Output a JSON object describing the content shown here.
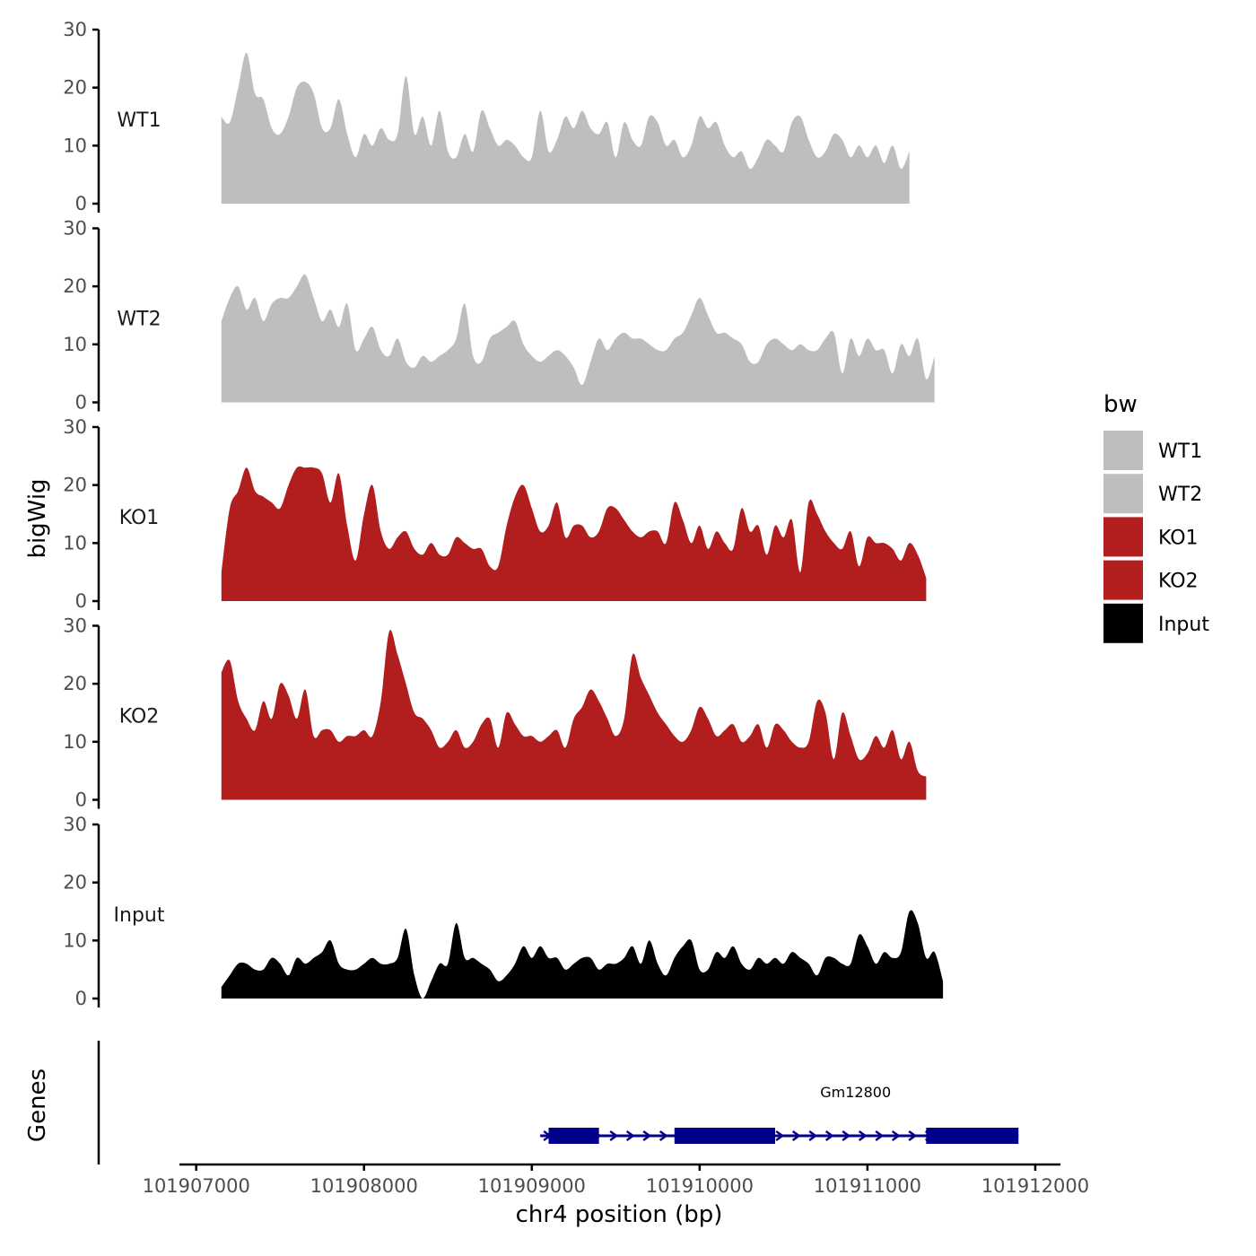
{
  "chart_data": {
    "type": "area",
    "ylabel": "bigWig",
    "genes_ylabel": "Genes",
    "xlabel": "chr4 position (bp)",
    "xlim": [
      101906900,
      101912150
    ],
    "ylim": [
      0,
      30
    ],
    "x_ticks": [
      101907000,
      101908000,
      101909000,
      101910000,
      101911000,
      101912000
    ],
    "x_tick_labels": [
      "101907000",
      "101908000",
      "101909000",
      "101910000",
      "101911000",
      "101912000"
    ],
    "y_ticks": [
      0,
      10,
      20,
      30
    ],
    "y_tick_labels": [
      "0",
      "10",
      "20",
      "30"
    ],
    "legend": {
      "title": "bw",
      "position": "right",
      "entries": [
        {
          "label": "WT1",
          "color": "#bebebe"
        },
        {
          "label": "WT2",
          "color": "#bebebe"
        },
        {
          "label": "KO1",
          "color": "#b21e1e"
        },
        {
          "label": "KO2",
          "color": "#b21e1e"
        },
        {
          "label": "Input",
          "color": "#000000"
        }
      ]
    },
    "x_start": 101907150,
    "x_step": 50,
    "series": [
      {
        "name": "WT1",
        "color": "#bebebe",
        "values": [
          15,
          14,
          20,
          26,
          19,
          18,
          13,
          12,
          15,
          20,
          21,
          19,
          13,
          13,
          18,
          12,
          8,
          12,
          10,
          13,
          11,
          12,
          22,
          12,
          15,
          10,
          16,
          9,
          8,
          12,
          9,
          16,
          13,
          10,
          11,
          10,
          8,
          8,
          16,
          9,
          11,
          15,
          13,
          16,
          13,
          12,
          14,
          8,
          14,
          11,
          10,
          15,
          14,
          10,
          11,
          8,
          10,
          15,
          13,
          14,
          10,
          8,
          9,
          6,
          8,
          11,
          10,
          9,
          14,
          15,
          11,
          8,
          9,
          12,
          11,
          8,
          10,
          8,
          10,
          7,
          10,
          6,
          9
        ]
      },
      {
        "name": "WT2",
        "color": "#bebebe",
        "values": [
          14,
          18,
          20,
          16,
          18,
          14,
          17,
          18,
          18,
          20,
          22,
          18,
          14,
          16,
          13,
          17,
          9,
          11,
          13,
          9,
          8,
          11,
          7,
          6,
          8,
          7,
          8,
          9,
          11,
          17,
          8,
          7,
          11,
          12,
          13,
          14,
          10,
          8,
          7,
          8,
          9,
          8,
          6,
          3,
          7,
          11,
          9,
          11,
          12,
          11,
          11,
          10,
          9,
          9,
          11,
          12,
          15,
          18,
          15,
          12,
          12,
          11,
          10,
          7,
          7,
          10,
          11,
          10,
          9,
          10,
          9,
          9,
          11,
          12,
          5,
          11,
          8,
          11,
          9,
          9,
          5,
          10,
          8,
          11,
          4,
          8
        ]
      },
      {
        "name": "KO1",
        "color": "#b21e1e",
        "values": [
          5,
          16,
          19,
          23,
          19,
          18,
          17,
          16,
          20,
          23,
          23,
          23,
          22,
          17,
          22,
          13,
          7,
          15,
          20,
          12,
          9,
          11,
          12,
          9,
          8,
          10,
          8,
          8,
          11,
          10,
          9,
          9,
          6,
          6,
          13,
          18,
          20,
          16,
          12,
          13,
          17,
          11,
          13,
          13,
          11,
          12,
          16,
          16,
          14,
          12,
          11,
          12,
          12,
          10,
          17,
          14,
          10,
          13,
          9,
          12,
          10,
          9,
          16,
          12,
          13,
          8,
          13,
          11,
          14,
          5,
          17,
          15,
          12,
          10,
          9,
          12,
          6,
          11,
          10,
          10,
          9,
          7,
          10,
          8,
          4
        ]
      },
      {
        "name": "KO2",
        "color": "#b21e1e",
        "values": [
          22,
          24,
          17,
          14,
          12,
          17,
          14,
          20,
          18,
          14,
          19,
          11,
          12,
          12,
          10,
          11,
          11,
          12,
          11,
          17,
          29,
          25,
          20,
          15,
          14,
          12,
          9,
          10,
          12,
          9,
          10,
          13,
          14,
          9,
          15,
          13,
          11,
          11,
          10,
          11,
          12,
          9,
          14,
          16,
          19,
          17,
          14,
          11,
          14,
          25,
          21,
          18,
          15,
          13,
          11,
          10,
          12,
          16,
          14,
          11,
          12,
          13,
          10,
          11,
          13,
          9,
          13,
          12,
          10,
          9,
          10,
          17,
          15,
          7,
          15,
          11,
          7,
          8,
          11,
          9,
          12,
          7,
          10,
          5,
          4
        ]
      },
      {
        "name": "Input",
        "color": "#000000",
        "values": [
          2,
          4,
          6,
          6,
          5,
          5,
          7,
          6,
          4,
          7,
          6,
          7,
          8,
          10,
          6,
          5,
          5,
          6,
          7,
          6,
          6,
          7,
          12,
          4,
          0,
          3,
          6,
          6,
          13,
          7,
          7,
          6,
          5,
          3,
          4,
          6,
          9,
          7,
          9,
          7,
          7,
          5,
          6,
          7,
          7,
          5,
          6,
          6,
          7,
          9,
          6,
          10,
          6,
          4,
          7,
          9,
          10,
          5,
          5,
          8,
          7,
          9,
          6,
          5,
          7,
          6,
          7,
          6,
          8,
          7,
          6,
          4,
          7,
          7,
          6,
          6,
          11,
          9,
          6,
          8,
          7,
          8,
          15,
          13,
          7,
          8,
          3
        ]
      }
    ],
    "gene_track": {
      "gene_name": "Gm12800",
      "strand": "+",
      "start": 101909050,
      "end": 101911900,
      "exons": [
        [
          101909100,
          101909400
        ],
        [
          101909850,
          101910450
        ],
        [
          101911350,
          101911900
        ]
      ]
    }
  }
}
